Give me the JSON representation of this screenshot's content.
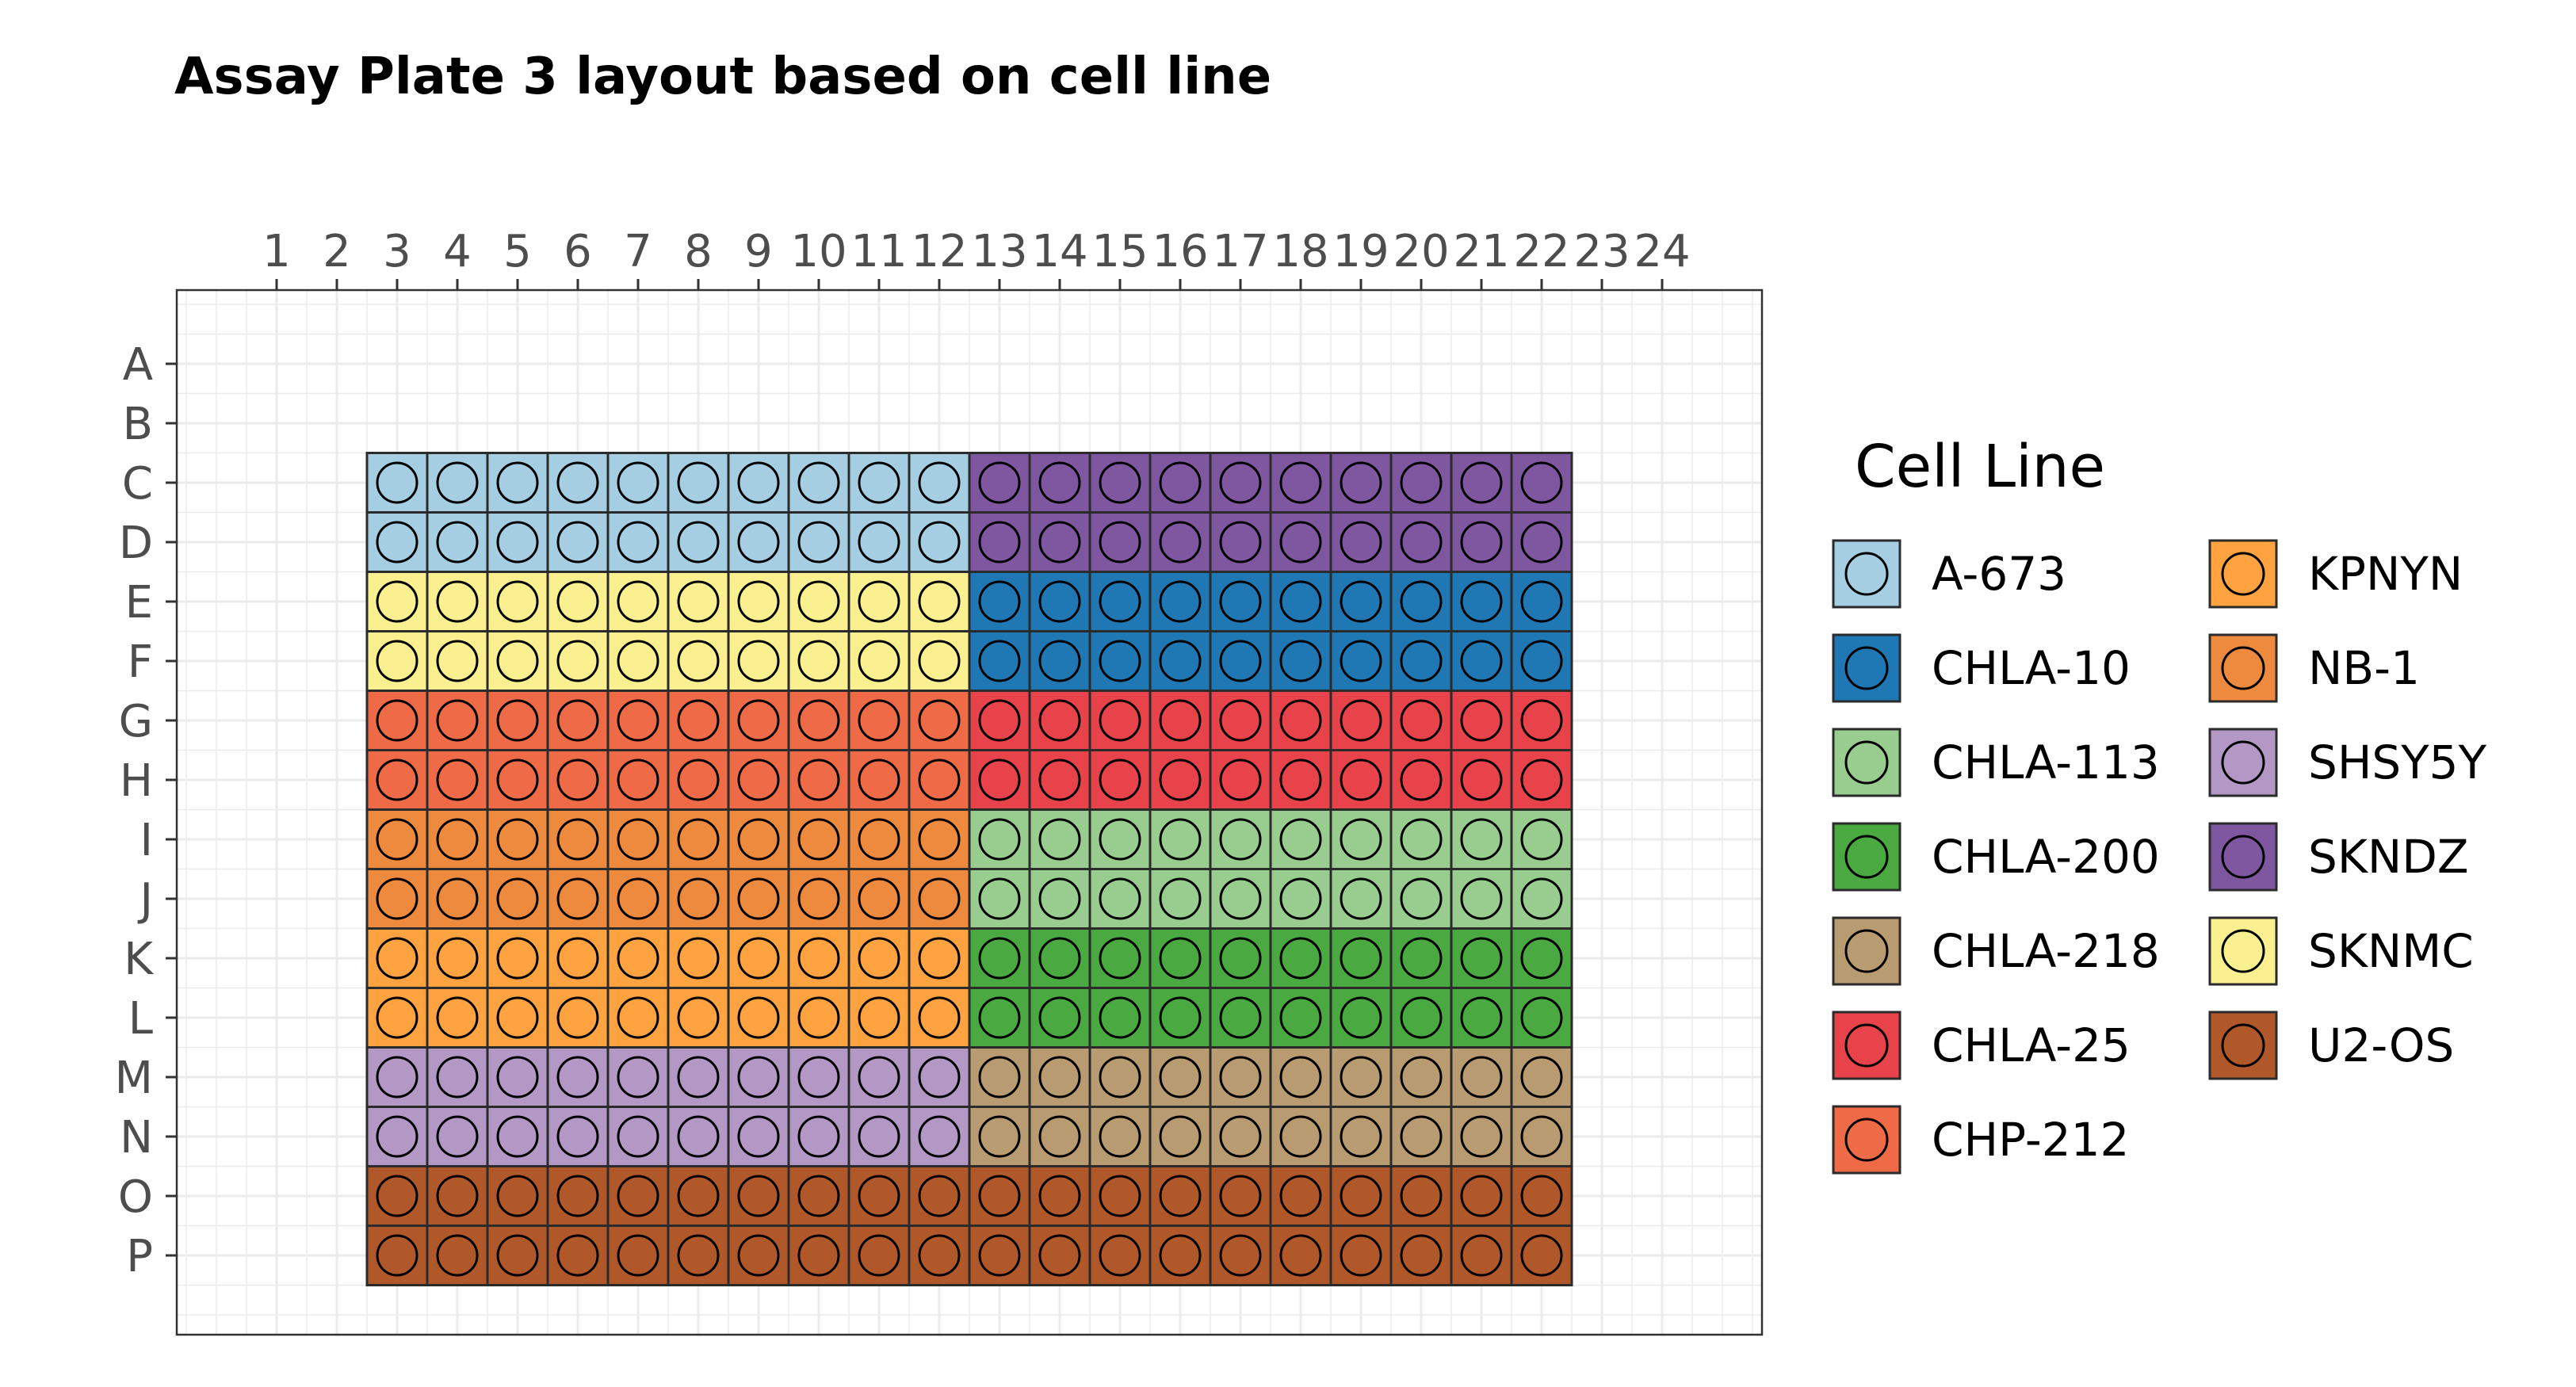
{
  "chart_data": {
    "type": "heatmap",
    "title": "Assay Plate 3 layout based on cell line",
    "xlabel": "",
    "ylabel": "",
    "columns": [
      "1",
      "2",
      "3",
      "4",
      "5",
      "6",
      "7",
      "8",
      "9",
      "10",
      "11",
      "12",
      "13",
      "14",
      "15",
      "16",
      "17",
      "18",
      "19",
      "20",
      "21",
      "22",
      "23",
      "24"
    ],
    "rows": [
      "A",
      "B",
      "C",
      "D",
      "E",
      "F",
      "G",
      "H",
      "I",
      "J",
      "K",
      "L",
      "M",
      "N",
      "O",
      "P"
    ],
    "grid": true,
    "legend": {
      "title": "Cell Line",
      "position": "right",
      "entries": [
        {
          "name": "A-673",
          "color": "#a6cee3"
        },
        {
          "name": "CHLA-10",
          "color": "#1f78b4"
        },
        {
          "name": "CHLA-113",
          "color": "#99cc8f"
        },
        {
          "name": "CHLA-200",
          "color": "#4aa941"
        },
        {
          "name": "CHLA-218",
          "color": "#b99b72"
        },
        {
          "name": "CHLA-25",
          "color": "#e8434a"
        },
        {
          "name": "CHP-212",
          "color": "#ef6a46"
        },
        {
          "name": "KPNYN",
          "color": "#fea33f"
        },
        {
          "name": "NB-1",
          "color": "#ee8a3e"
        },
        {
          "name": "SHSY5Y",
          "color": "#b398c6"
        },
        {
          "name": "SKNDZ",
          "color": "#7f56a0"
        },
        {
          "name": "SKNMC",
          "color": "#fbf08f"
        },
        {
          "name": "U2-OS",
          "color": "#b1582b"
        }
      ]
    },
    "blocks": [
      {
        "cell_line": "A-673",
        "rows": [
          "C",
          "D"
        ],
        "columns": [
          3,
          12
        ]
      },
      {
        "cell_line": "SKNDZ",
        "rows": [
          "C",
          "D"
        ],
        "columns": [
          13,
          22
        ]
      },
      {
        "cell_line": "SKNMC",
        "rows": [
          "E",
          "F"
        ],
        "columns": [
          3,
          12
        ]
      },
      {
        "cell_line": "CHLA-10",
        "rows": [
          "E",
          "F"
        ],
        "columns": [
          13,
          22
        ]
      },
      {
        "cell_line": "CHP-212",
        "rows": [
          "G",
          "H"
        ],
        "columns": [
          3,
          12
        ]
      },
      {
        "cell_line": "CHLA-25",
        "rows": [
          "G",
          "H"
        ],
        "columns": [
          13,
          22
        ]
      },
      {
        "cell_line": "NB-1",
        "rows": [
          "I",
          "J"
        ],
        "columns": [
          3,
          12
        ]
      },
      {
        "cell_line": "CHLA-113",
        "rows": [
          "I",
          "J"
        ],
        "columns": [
          13,
          22
        ]
      },
      {
        "cell_line": "KPNYN",
        "rows": [
          "K",
          "L"
        ],
        "columns": [
          3,
          12
        ]
      },
      {
        "cell_line": "CHLA-200",
        "rows": [
          "K",
          "L"
        ],
        "columns": [
          13,
          22
        ]
      },
      {
        "cell_line": "SHSY5Y",
        "rows": [
          "M",
          "N"
        ],
        "columns": [
          3,
          12
        ]
      },
      {
        "cell_line": "CHLA-218",
        "rows": [
          "M",
          "N"
        ],
        "columns": [
          13,
          22
        ]
      },
      {
        "cell_line": "U2-OS",
        "rows": [
          "O",
          "P"
        ],
        "columns": [
          3,
          22
        ]
      }
    ]
  }
}
